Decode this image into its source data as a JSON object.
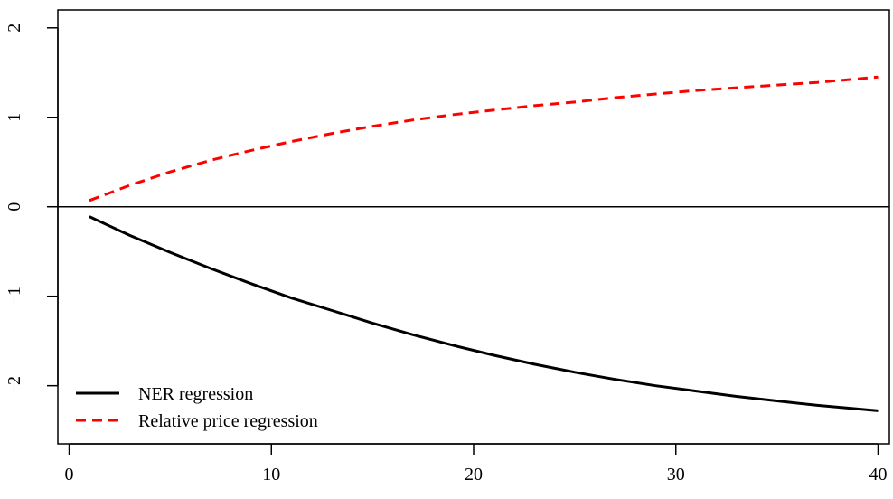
{
  "chart_data": {
    "type": "line",
    "title": "",
    "xlabel": "",
    "ylabel": "",
    "xlim": [
      -0.56,
      40.56
    ],
    "ylim": [
      -2.65,
      2.2
    ],
    "x_ticks": [
      0,
      10,
      20,
      30,
      40
    ],
    "x_tick_labels": [
      "0",
      "10",
      "20",
      "30",
      "40"
    ],
    "y_ticks": [
      -2,
      -1,
      0,
      1,
      2
    ],
    "y_tick_labels": [
      "−2",
      "−1",
      "0",
      "1",
      "2"
    ],
    "reference_line": {
      "y": 0,
      "color": "#000000"
    },
    "grid": false,
    "legend_position": "bottom-left",
    "series": [
      {
        "name": "NER regression",
        "color": "#000000",
        "line_style": "solid",
        "x": [
          1,
          3,
          5,
          7,
          9,
          11,
          13,
          15,
          17,
          19,
          21,
          23,
          25,
          27,
          29,
          31,
          33,
          35,
          37,
          39,
          40
        ],
        "y": [
          -0.11,
          -0.32,
          -0.51,
          -0.69,
          -0.86,
          -1.02,
          -1.16,
          -1.3,
          -1.43,
          -1.55,
          -1.66,
          -1.76,
          -1.85,
          -1.93,
          -2.0,
          -2.06,
          -2.12,
          -2.17,
          -2.22,
          -2.26,
          -2.28
        ]
      },
      {
        "name": "Relative price regression",
        "color": "#ff0000",
        "line_style": "dashed",
        "x": [
          1,
          3,
          5,
          7,
          9,
          11,
          13,
          15,
          17,
          19,
          21,
          23,
          25,
          27,
          29,
          31,
          33,
          35,
          37,
          39,
          40
        ],
        "y": [
          0.07,
          0.24,
          0.39,
          0.52,
          0.63,
          0.73,
          0.82,
          0.9,
          0.97,
          1.03,
          1.08,
          1.13,
          1.17,
          1.22,
          1.26,
          1.3,
          1.33,
          1.36,
          1.39,
          1.43,
          1.45
        ]
      }
    ]
  }
}
